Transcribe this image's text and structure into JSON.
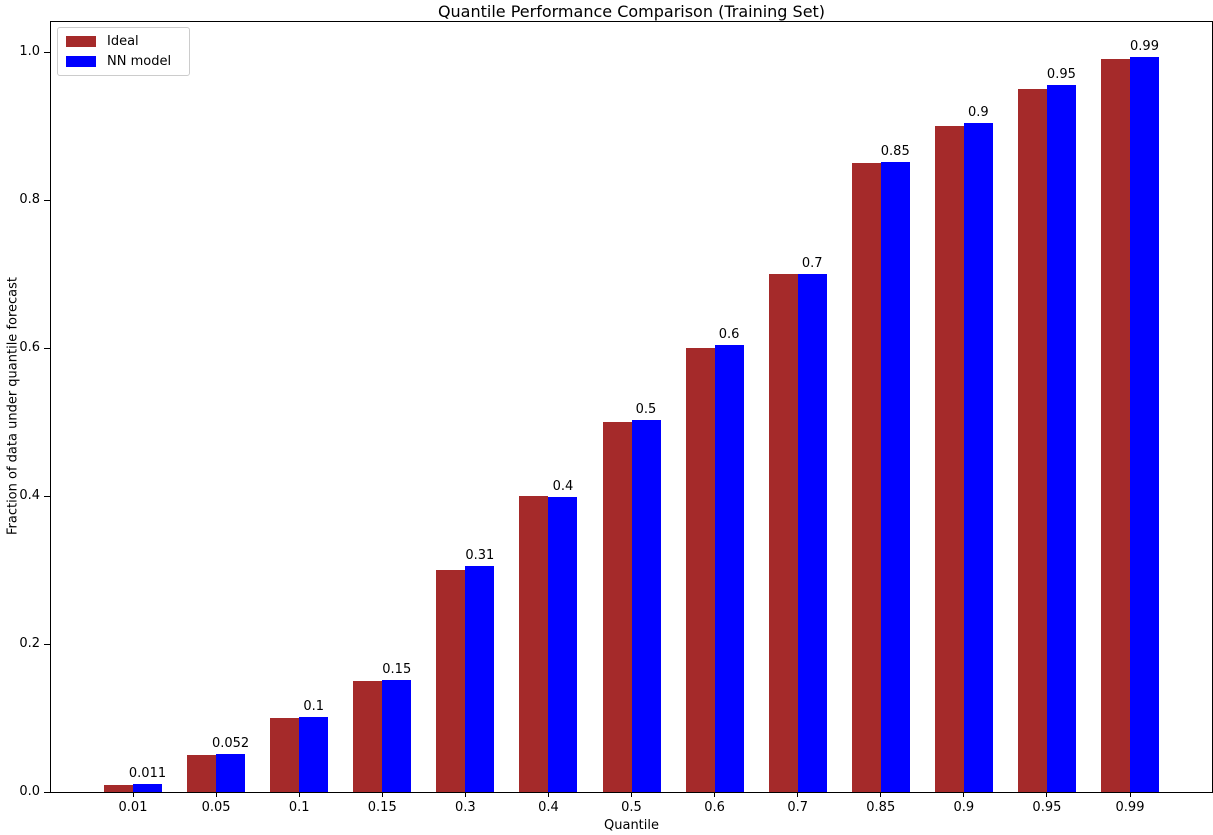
{
  "chart_data": {
    "type": "bar",
    "title": "Quantile Performance Comparison (Training Set)",
    "xlabel": "Quantile",
    "ylabel": "Fraction of data under quantile forecast",
    "categories": [
      "0.01",
      "0.05",
      "0.1",
      "0.15",
      "0.3",
      "0.4",
      "0.5",
      "0.6",
      "0.7",
      "0.85",
      "0.9",
      "0.95",
      "0.99"
    ],
    "series": [
      {
        "name": "Ideal",
        "color": "#A52A2A",
        "values": [
          0.01,
          0.05,
          0.1,
          0.15,
          0.3,
          0.4,
          0.5,
          0.6,
          0.7,
          0.85,
          0.9,
          0.95,
          0.99
        ]
      },
      {
        "name": "NN model",
        "color": "#0000FF",
        "values": [
          0.011,
          0.052,
          0.102,
          0.152,
          0.306,
          0.398,
          0.503,
          0.604,
          0.7,
          0.851,
          0.904,
          0.955,
          0.993
        ]
      }
    ],
    "bar_labels": [
      "0.011",
      "0.052",
      "0.1",
      "0.15",
      "0.31",
      "0.4",
      "0.5",
      "0.6",
      "0.7",
      "0.85",
      "0.9",
      "0.95",
      "0.99"
    ],
    "ytick_labels": [
      "0.0",
      "0.2",
      "0.4",
      "0.6",
      "0.8",
      "1.0"
    ],
    "yticks": [
      0.0,
      0.2,
      0.4,
      0.6,
      0.8,
      1.0
    ],
    "ylim": [
      0.0,
      1.042
    ],
    "grid": false,
    "legend_position": "upper left",
    "axis_color": "#000000",
    "background_color": "#ffffff"
  }
}
